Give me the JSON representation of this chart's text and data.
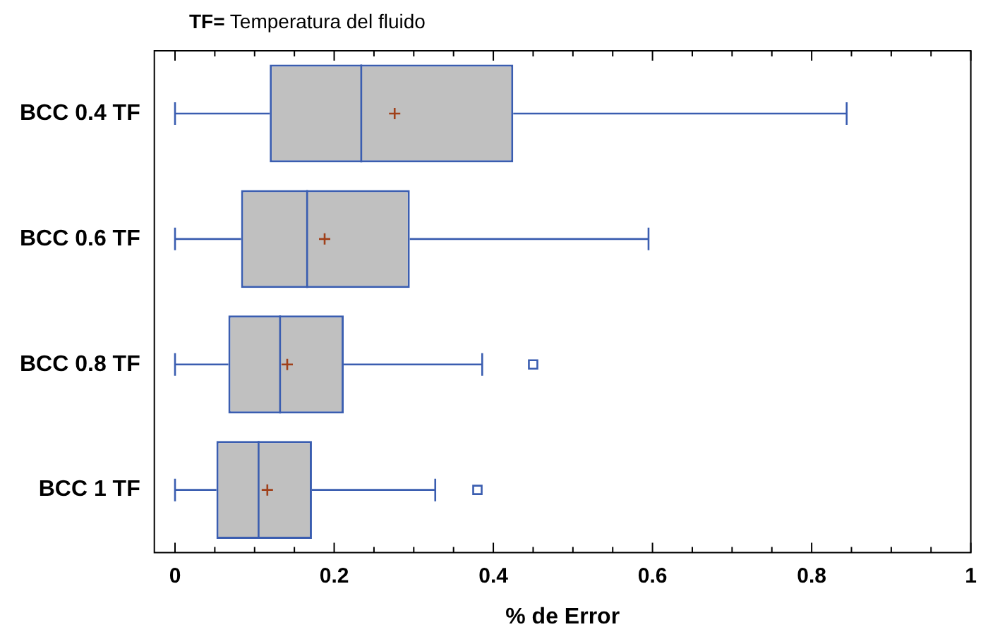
{
  "chart_data": {
    "type": "box",
    "orientation": "horizontal",
    "title": "TF= Temperatura del fluido",
    "xlabel": "% de Error",
    "categories": [
      "BCC 0.4 TF",
      "BCC 0.6 TF",
      "BCC 0.8 TF",
      "BCC 1 TF"
    ],
    "color": "#3a5db0",
    "marker": "square",
    "grid": false,
    "boxes": [
      {
        "low": 0,
        "q1": 0.119,
        "median": 0.234,
        "q3": 0.425,
        "high": 0.844,
        "mean": 0.276
      },
      {
        "low": 0,
        "q1": 0.083,
        "median": 0.166,
        "q3": 0.295,
        "high": 0.595,
        "mean": 0.188
      },
      {
        "low": 0,
        "q1": 0.067,
        "median": 0.132,
        "q3": 0.212,
        "high": 0.386,
        "mean": 0.141,
        "outliers": [
          0.45
        ]
      },
      {
        "low": 0,
        "q1": 0.052,
        "median": 0.105,
        "q3": 0.172,
        "high": 0.327,
        "mean": 0.116,
        "outliers": [
          0.38
        ]
      }
    ],
    "xlim": [
      -0.026,
      1.0
    ],
    "xticks": [
      0,
      {
        "value": 0.05,
        "label": null
      },
      {
        "value": 0.1,
        "label": null
      },
      {
        "value": 0.15,
        "label": null
      },
      0.2,
      {
        "value": 0.25,
        "label": null
      },
      {
        "value": 0.3,
        "label": null
      },
      {
        "value": 0.35,
        "label": null
      },
      0.4,
      {
        "value": 0.45,
        "label": null
      },
      {
        "value": 0.5,
        "label": null
      },
      {
        "value": 0.55,
        "label": null
      },
      0.6,
      {
        "value": 0.65,
        "label": null
      },
      {
        "value": 0.7,
        "label": null
      },
      {
        "value": 0.75,
        "label": null
      },
      0.8,
      {
        "value": 0.85,
        "label": null
      },
      {
        "value": 0.9,
        "label": null
      },
      {
        "value": 0.95,
        "label": null
      },
      1
    ]
  }
}
